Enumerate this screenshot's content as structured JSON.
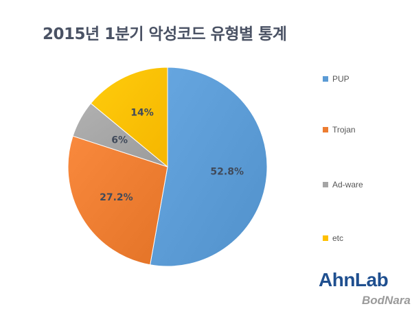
{
  "chart_data": {
    "type": "pie",
    "title": "2015년 1분기 악성코드 유형별 통계",
    "start_angle_deg": 0,
    "direction": "clockwise",
    "slices": [
      {
        "label": "PUP",
        "value": 52.8,
        "display": "52.8%",
        "color": "#5b9bd5"
      },
      {
        "label": "Trojan",
        "value": 27.2,
        "display": "27.2%",
        "color": "#ed7d31"
      },
      {
        "label": "Ad-ware",
        "value": 6,
        "display": "6%",
        "color": "#a5a5a5"
      },
      {
        "label": "etc",
        "value": 14,
        "display": "14%",
        "color": "#ffc000"
      }
    ],
    "legend_position": "right"
  },
  "branding": {
    "logo": "AhnLab",
    "watermark": "BodNara"
  },
  "label_color": "#404a5a"
}
